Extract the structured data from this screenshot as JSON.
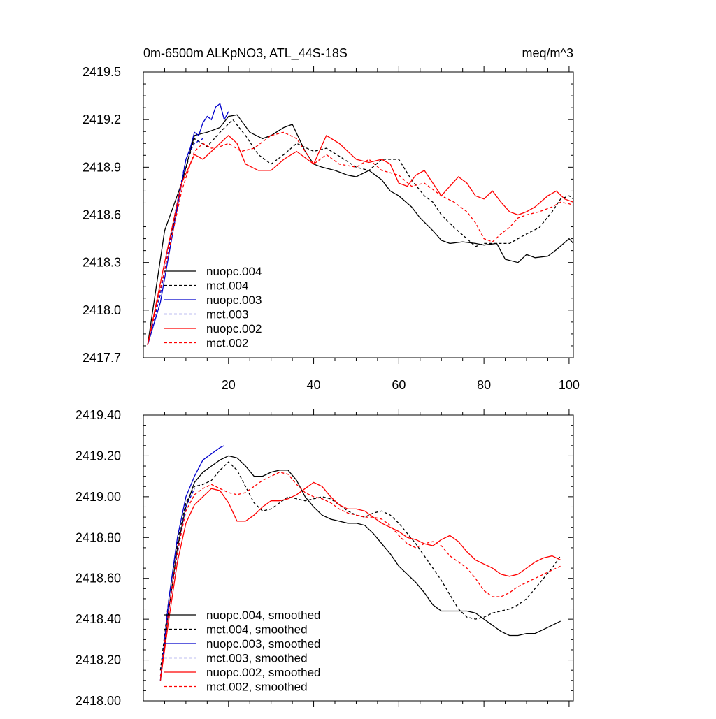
{
  "chart_data": [
    {
      "type": "line",
      "title_left": "0m-6500m ALKpNO3, ATL_44S-18S",
      "title_right": "meq/m^3",
      "xlim": [
        0,
        101
      ],
      "ylim": [
        2417.7,
        2419.5
      ],
      "xticks": [
        20,
        40,
        60,
        80,
        100
      ],
      "xtick_labels": [
        "20",
        "40",
        "60",
        "80",
        "100"
      ],
      "yticks": [
        2417.7,
        2418.0,
        2418.3,
        2418.6,
        2418.9,
        2419.2,
        2419.5
      ],
      "ytick_labels": [
        "2417.7",
        "2418.0",
        "2418.3",
        "2418.6",
        "2418.9",
        "2419.2",
        "2419.5"
      ],
      "legend_position": "lower-left",
      "series": [
        {
          "name": "nuopc.004",
          "color": "#000000",
          "dash": "solid",
          "x": [
            1,
            5,
            9,
            12,
            15,
            18,
            20,
            22,
            25,
            28,
            30,
            33,
            35,
            38,
            40,
            42,
            45,
            48,
            50,
            53,
            56,
            58,
            60,
            63,
            65,
            68,
            70,
            72,
            75,
            78,
            80,
            83,
            85,
            88,
            90,
            92,
            95,
            97,
            100,
            101
          ],
          "y": [
            2417.78,
            2418.5,
            2418.8,
            2419.1,
            2419.12,
            2419.15,
            2419.22,
            2419.23,
            2419.12,
            2419.08,
            2419.1,
            2419.15,
            2419.17,
            2419.0,
            2418.92,
            2418.9,
            2418.88,
            2418.85,
            2418.84,
            2418.88,
            2418.82,
            2418.75,
            2418.72,
            2418.65,
            2418.58,
            2418.5,
            2418.44,
            2418.42,
            2418.43,
            2418.42,
            2418.41,
            2418.42,
            2418.32,
            2418.3,
            2418.35,
            2418.33,
            2418.34,
            2418.38,
            2418.45,
            2418.42
          ]
        },
        {
          "name": "mct.004",
          "color": "#000000",
          "dash": "dashed",
          "x": [
            1,
            5,
            9,
            12,
            15,
            18,
            21,
            24,
            27,
            30,
            33,
            36,
            40,
            43,
            46,
            50,
            53,
            56,
            60,
            63,
            66,
            68,
            70,
            73,
            76,
            78,
            80,
            83,
            86,
            90,
            93,
            96,
            98,
            100,
            101
          ],
          "y": [
            2417.78,
            2418.25,
            2418.8,
            2419.08,
            2419.03,
            2419.12,
            2419.2,
            2419.1,
            2418.98,
            2418.92,
            2418.98,
            2419.05,
            2419.0,
            2419.02,
            2418.97,
            2418.9,
            2418.88,
            2418.95,
            2418.95,
            2418.82,
            2418.72,
            2418.68,
            2418.6,
            2418.52,
            2418.45,
            2418.4,
            2418.42,
            2418.42,
            2418.42,
            2418.48,
            2418.52,
            2418.62,
            2418.7,
            2418.72,
            2418.7
          ]
        },
        {
          "name": "nuopc.003",
          "color": "#0000cc",
          "dash": "solid",
          "x": [
            1,
            4,
            7,
            10,
            11,
            12,
            13,
            14,
            15,
            16,
            17,
            18,
            19,
            20
          ],
          "y": [
            2417.78,
            2418.05,
            2418.5,
            2418.95,
            2419.02,
            2419.12,
            2419.1,
            2419.18,
            2419.22,
            2419.2,
            2419.28,
            2419.3,
            2419.2,
            2419.25
          ]
        },
        {
          "name": "mct.003",
          "color": "#0000cc",
          "dash": "dashed",
          "x": [
            1,
            4,
            7,
            10,
            12,
            14
          ],
          "y": [
            2417.78,
            2418.1,
            2418.55,
            2418.95,
            2419.05,
            2419.08
          ]
        },
        {
          "name": "nuopc.002",
          "color": "#ff0000",
          "dash": "solid",
          "x": [
            1,
            5,
            9,
            12,
            14,
            16,
            18,
            20,
            22,
            24,
            27,
            30,
            33,
            36,
            40,
            43,
            46,
            50,
            53,
            56,
            58,
            60,
            62,
            64,
            66,
            68,
            70,
            72,
            74,
            76,
            78,
            80,
            82,
            84,
            86,
            88,
            90,
            92,
            95,
            97,
            99,
            101
          ],
          "y": [
            2417.78,
            2418.3,
            2418.8,
            2418.98,
            2418.95,
            2419.0,
            2419.05,
            2419.1,
            2419.05,
            2418.92,
            2418.88,
            2418.88,
            2418.95,
            2419.0,
            2418.92,
            2419.1,
            2419.05,
            2418.95,
            2418.93,
            2418.95,
            2418.92,
            2418.8,
            2418.78,
            2418.85,
            2418.88,
            2418.8,
            2418.72,
            2418.78,
            2418.84,
            2418.8,
            2418.72,
            2418.7,
            2418.75,
            2418.68,
            2418.62,
            2418.6,
            2418.62,
            2418.65,
            2418.72,
            2418.75,
            2418.7,
            2418.68
          ]
        },
        {
          "name": "mct.002",
          "color": "#ff0000",
          "dash": "dashed",
          "x": [
            1,
            5,
            9,
            12,
            14,
            16,
            18,
            20,
            23,
            26,
            30,
            33,
            36,
            40,
            43,
            46,
            50,
            53,
            56,
            60,
            63,
            66,
            70,
            73,
            76,
            78,
            80,
            82,
            84,
            86,
            88,
            90,
            93,
            96,
            98,
            100,
            101
          ],
          "y": [
            2417.78,
            2418.25,
            2418.75,
            2419.0,
            2419.05,
            2419.02,
            2419.03,
            2419.05,
            2419.0,
            2419.02,
            2419.1,
            2419.12,
            2419.08,
            2418.92,
            2418.98,
            2418.92,
            2418.9,
            2418.95,
            2418.88,
            2418.85,
            2418.78,
            2418.8,
            2418.72,
            2418.68,
            2418.62,
            2418.55,
            2418.45,
            2418.43,
            2418.48,
            2418.52,
            2418.58,
            2418.6,
            2418.62,
            2418.65,
            2418.68,
            2418.67,
            2418.66
          ]
        }
      ]
    },
    {
      "type": "line",
      "xlim": [
        0,
        101
      ],
      "ylim": [
        2418.0,
        2419.4
      ],
      "xticks": [
        20,
        40,
        60,
        80,
        100
      ],
      "yticks": [
        2418.0,
        2418.2,
        2418.4,
        2418.6,
        2418.8,
        2419.0,
        2419.2,
        2419.4
      ],
      "ytick_labels": [
        "2418.00",
        "2418.20",
        "2418.40",
        "2418.60",
        "2418.80",
        "2419.00",
        "2419.20",
        "2419.40"
      ],
      "legend_position": "lower-left",
      "series": [
        {
          "name": "nuopc.004, smoothed",
          "color": "#000000",
          "dash": "solid",
          "x": [
            4,
            6,
            8,
            10,
            12,
            14,
            16,
            18,
            20,
            22,
            24,
            26,
            28,
            30,
            32,
            34,
            36,
            38,
            40,
            42,
            44,
            46,
            48,
            50,
            52,
            54,
            56,
            58,
            60,
            62,
            64,
            66,
            68,
            70,
            72,
            74,
            76,
            78,
            80,
            82,
            84,
            86,
            88,
            90,
            92,
            94,
            96,
            98
          ],
          "y": [
            2418.1,
            2418.45,
            2418.75,
            2418.95,
            2419.07,
            2419.12,
            2419.15,
            2419.18,
            2419.2,
            2419.19,
            2419.15,
            2419.1,
            2419.1,
            2419.12,
            2419.13,
            2419.13,
            2419.08,
            2419.0,
            2418.95,
            2418.91,
            2418.89,
            2418.88,
            2418.87,
            2418.87,
            2418.86,
            2418.82,
            2418.77,
            2418.72,
            2418.66,
            2418.62,
            2418.58,
            2418.53,
            2418.47,
            2418.44,
            2418.44,
            2418.44,
            2418.44,
            2418.43,
            2418.4,
            2418.37,
            2418.34,
            2418.32,
            2418.32,
            2418.33,
            2418.33,
            2418.35,
            2418.37,
            2418.39
          ]
        },
        {
          "name": "mct.004, smoothed",
          "color": "#000000",
          "dash": "dashed",
          "x": [
            4,
            6,
            8,
            10,
            12,
            14,
            16,
            18,
            20,
            22,
            24,
            26,
            28,
            30,
            32,
            34,
            36,
            38,
            40,
            42,
            44,
            46,
            48,
            50,
            52,
            54,
            56,
            58,
            60,
            62,
            64,
            66,
            68,
            70,
            72,
            74,
            76,
            78,
            80,
            82,
            84,
            86,
            88,
            90,
            92,
            94,
            96,
            98
          ],
          "y": [
            2418.15,
            2418.5,
            2418.78,
            2418.97,
            2419.05,
            2419.06,
            2419.08,
            2419.13,
            2419.17,
            2419.13,
            2419.05,
            2418.97,
            2418.93,
            2418.94,
            2418.97,
            2419.0,
            2418.99,
            2418.98,
            2418.99,
            2419.0,
            2418.99,
            2418.96,
            2418.93,
            2418.91,
            2418.9,
            2418.92,
            2418.93,
            2418.91,
            2418.87,
            2418.82,
            2418.77,
            2418.71,
            2418.65,
            2418.59,
            2418.52,
            2418.45,
            2418.41,
            2418.4,
            2418.41,
            2418.43,
            2418.44,
            2418.45,
            2418.47,
            2418.5,
            2418.55,
            2418.6,
            2418.65,
            2418.71
          ]
        },
        {
          "name": "nuopc.003, smoothed",
          "color": "#0000cc",
          "dash": "solid",
          "x": [
            4,
            6,
            8,
            10,
            12,
            14,
            16,
            18,
            19
          ],
          "y": [
            2418.1,
            2418.5,
            2418.8,
            2419.0,
            2419.1,
            2419.18,
            2419.21,
            2419.24,
            2419.25
          ]
        },
        {
          "name": "mct.003, smoothed",
          "color": "#0000cc",
          "dash": "dashed",
          "x": [
            4,
            6,
            8,
            10,
            12
          ],
          "y": [
            2418.12,
            2418.45,
            2418.72,
            2418.95,
            2419.04
          ]
        },
        {
          "name": "nuopc.002, smoothed",
          "color": "#ff0000",
          "dash": "solid",
          "x": [
            4,
            6,
            8,
            10,
            12,
            14,
            16,
            18,
            20,
            22,
            24,
            26,
            28,
            30,
            32,
            34,
            36,
            38,
            40,
            42,
            44,
            46,
            48,
            50,
            52,
            54,
            56,
            58,
            60,
            62,
            64,
            66,
            68,
            70,
            72,
            74,
            76,
            78,
            80,
            82,
            84,
            86,
            88,
            90,
            92,
            94,
            96,
            98
          ],
          "y": [
            2418.1,
            2418.4,
            2418.68,
            2418.87,
            2418.96,
            2419.0,
            2419.04,
            2419.03,
            2418.97,
            2418.88,
            2418.88,
            2418.91,
            2418.95,
            2418.98,
            2418.98,
            2418.99,
            2419.01,
            2419.04,
            2419.07,
            2419.05,
            2419.0,
            2418.96,
            2418.94,
            2418.94,
            2418.93,
            2418.9,
            2418.87,
            2418.85,
            2418.83,
            2418.8,
            2418.79,
            2418.77,
            2418.76,
            2418.79,
            2418.81,
            2418.78,
            2418.73,
            2418.69,
            2418.67,
            2418.65,
            2418.62,
            2418.61,
            2418.62,
            2418.65,
            2418.68,
            2418.7,
            2418.71,
            2418.69
          ]
        },
        {
          "name": "mct.002, smoothed",
          "color": "#ff0000",
          "dash": "dashed",
          "x": [
            4,
            6,
            8,
            10,
            12,
            14,
            16,
            18,
            20,
            22,
            24,
            26,
            28,
            30,
            32,
            34,
            36,
            38,
            40,
            42,
            44,
            46,
            48,
            50,
            52,
            54,
            56,
            58,
            60,
            62,
            64,
            66,
            68,
            70,
            72,
            74,
            76,
            78,
            80,
            82,
            84,
            86,
            88,
            90,
            92,
            94,
            96,
            98
          ],
          "y": [
            2418.12,
            2418.45,
            2418.73,
            2418.93,
            2419.01,
            2419.04,
            2419.06,
            2419.04,
            2419.02,
            2419.01,
            2419.02,
            2419.05,
            2419.08,
            2419.1,
            2419.12,
            2419.11,
            2419.06,
            2419.02,
            2419.0,
            2418.99,
            2418.97,
            2418.94,
            2418.92,
            2418.91,
            2418.9,
            2418.9,
            2418.89,
            2418.86,
            2418.81,
            2418.77,
            2418.75,
            2418.77,
            2418.78,
            2418.76,
            2418.71,
            2418.68,
            2418.65,
            2418.6,
            2418.54,
            2418.51,
            2418.51,
            2418.53,
            2418.56,
            2418.58,
            2418.6,
            2418.62,
            2418.64,
            2418.66
          ]
        }
      ]
    }
  ]
}
